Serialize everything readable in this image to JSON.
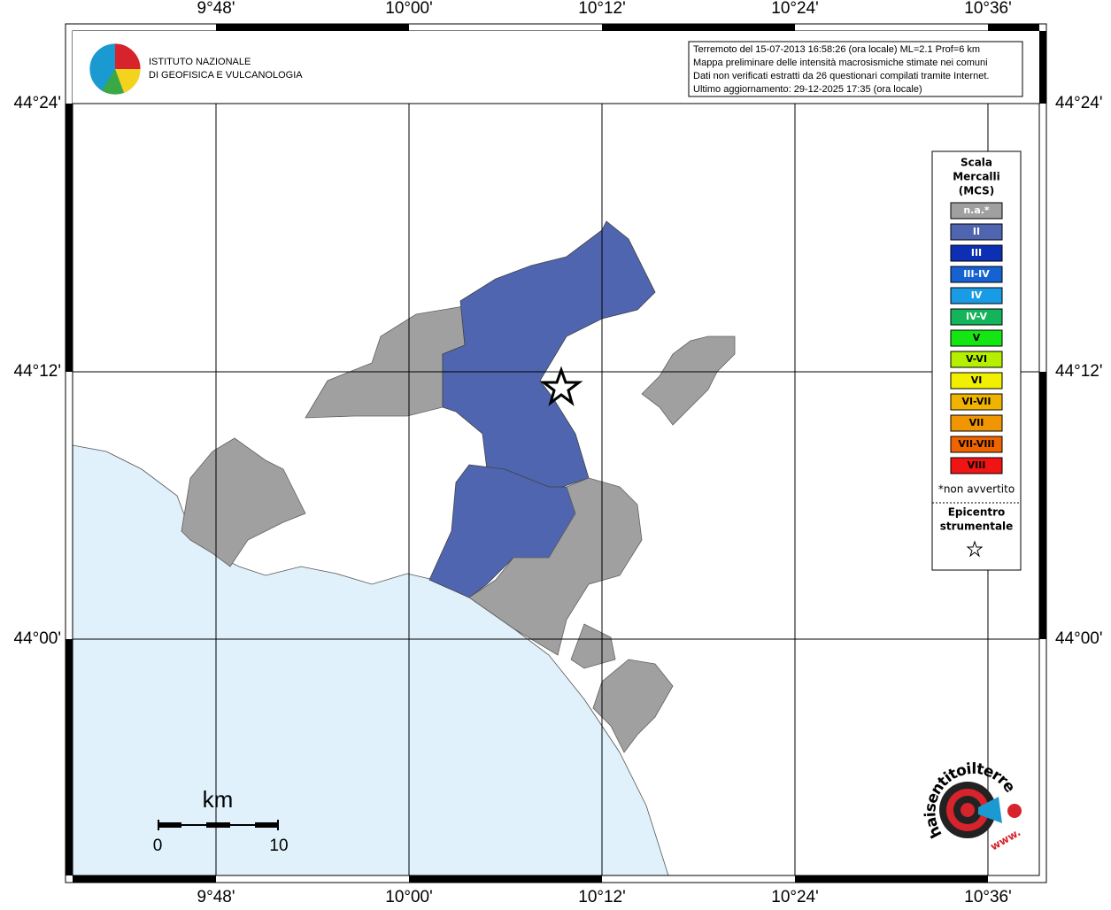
{
  "header": {
    "institute_line1": "ISTITUTO NAZIONALE",
    "institute_line2": "DI GEOFISICA E VULCANOLOGIA"
  },
  "info": {
    "lines": [
      "Terremoto del 15-07-2013 16:58:26 (ora locale) ML=2.1 Prof=6 km",
      "Mappa preliminare delle intensità macrosismiche stimate nei comuni",
      "Dati non verificati estratti da 26 questionari compilati tramite Internet.",
      "Ultimo aggiornamento: 29-12-2025 17:35 (ora locale)"
    ]
  },
  "graticule": {
    "longitudes": [
      "9°48'",
      "10°00'",
      "10°12'",
      "10°24'",
      "10°36'"
    ],
    "latitudes": [
      "44°24'",
      "44°12'",
      "44°00'"
    ]
  },
  "legend": {
    "title": [
      "Scala",
      "Mercalli",
      "(MCS)"
    ],
    "entries": [
      {
        "label": "n.a.*",
        "color": "#a0a0a0"
      },
      {
        "label": "II",
        "color": "#4f65b0"
      },
      {
        "label": "III",
        "color": "#0c2fb4"
      },
      {
        "label": "III-IV",
        "color": "#1562d2"
      },
      {
        "label": "IV",
        "color": "#1a9be6"
      },
      {
        "label": "IV-V",
        "color": "#14b45a"
      },
      {
        "label": "V",
        "color": "#14e614"
      },
      {
        "label": "V-VI",
        "color": "#b4f000"
      },
      {
        "label": "VI",
        "color": "#f0f000"
      },
      {
        "label": "VI-VII",
        "color": "#f0b400"
      },
      {
        "label": "VII",
        "color": "#f09600"
      },
      {
        "label": "VII-VIII",
        "color": "#f06400"
      },
      {
        "label": "VIII",
        "color": "#f01414"
      }
    ],
    "note": "*non avvertito",
    "epicenter": [
      "Epicentro",
      "strumentale"
    ]
  },
  "scale_bar": {
    "unit": "km",
    "start": "0",
    "end": "10"
  },
  "footer_logo": {
    "url": "haisentitoilterremoto.it",
    "prefix": "www."
  }
}
